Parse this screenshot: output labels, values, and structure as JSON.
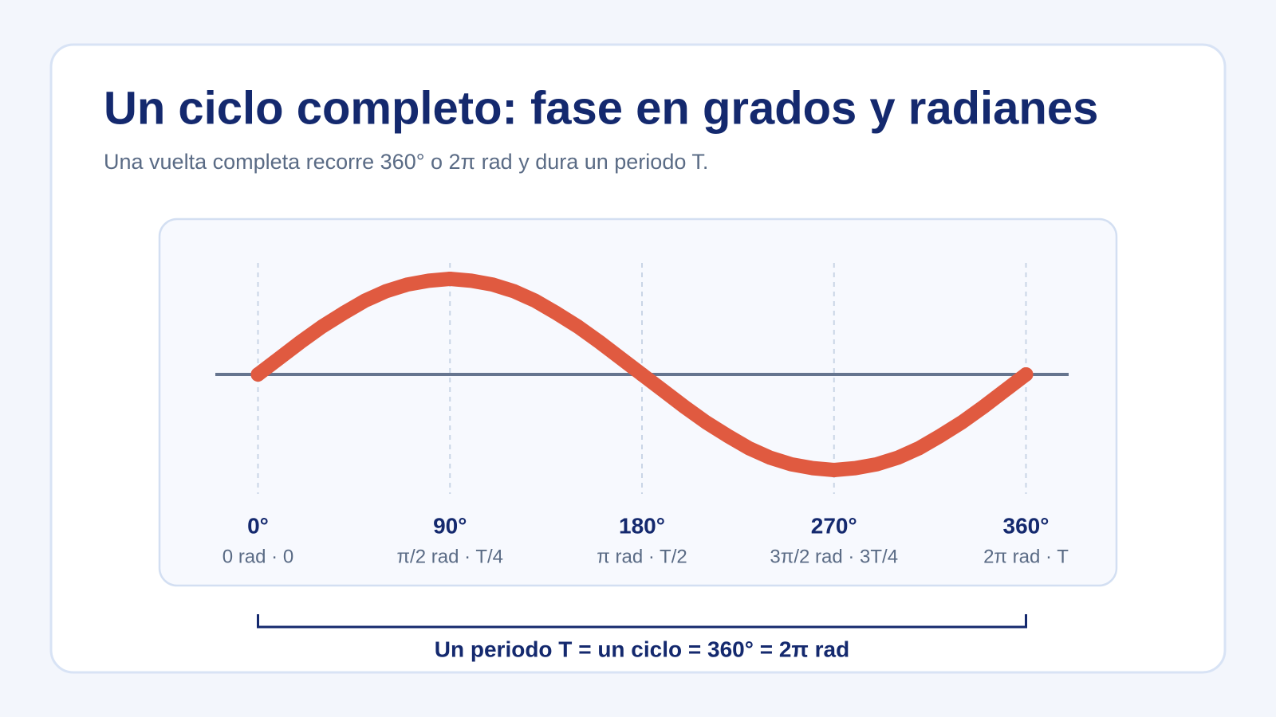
{
  "chart_data": {
    "type": "line",
    "title": "Un ciclo completo: fase en grados y radianes",
    "subtitle": "Una vuelta completa recorre 360° o 2π rad y dura un periodo T.",
    "x": [
      0,
      10,
      20,
      30,
      40,
      50,
      60,
      70,
      80,
      90,
      100,
      110,
      120,
      130,
      140,
      150,
      160,
      170,
      180,
      190,
      200,
      210,
      220,
      230,
      240,
      250,
      260,
      270,
      280,
      290,
      300,
      310,
      320,
      330,
      340,
      350,
      360
    ],
    "values": [
      0,
      0.17,
      0.34,
      0.5,
      0.64,
      0.77,
      0.87,
      0.94,
      0.98,
      1,
      0.98,
      0.94,
      0.87,
      0.77,
      0.64,
      0.5,
      0.34,
      0.17,
      0,
      -0.17,
      -0.34,
      -0.5,
      -0.64,
      -0.77,
      -0.87,
      -0.94,
      -0.98,
      -1,
      -0.98,
      -0.94,
      -0.87,
      -0.77,
      -0.64,
      -0.5,
      -0.34,
      -0.17,
      0
    ],
    "color": "#e05a40",
    "xlim": [
      -20,
      380
    ],
    "ylim": [
      -1.5,
      1.5
    ],
    "xticks": [
      {
        "value": 0,
        "label": "0°"
      },
      {
        "value": 90,
        "label": "90°"
      },
      {
        "value": 180,
        "label": "180°"
      },
      {
        "value": 270,
        "label": "270°"
      },
      {
        "value": 360,
        "label": "360°"
      }
    ],
    "xtick_sublabels": [
      "0 rad · 0",
      "π/2 rad · T/4",
      "π rad · T/2",
      "3π/2 rad · 3T/4",
      "2π rad · T"
    ],
    "grid": true,
    "annotation": "Un periodo T = un ciclo = 360° = 2π rad"
  }
}
